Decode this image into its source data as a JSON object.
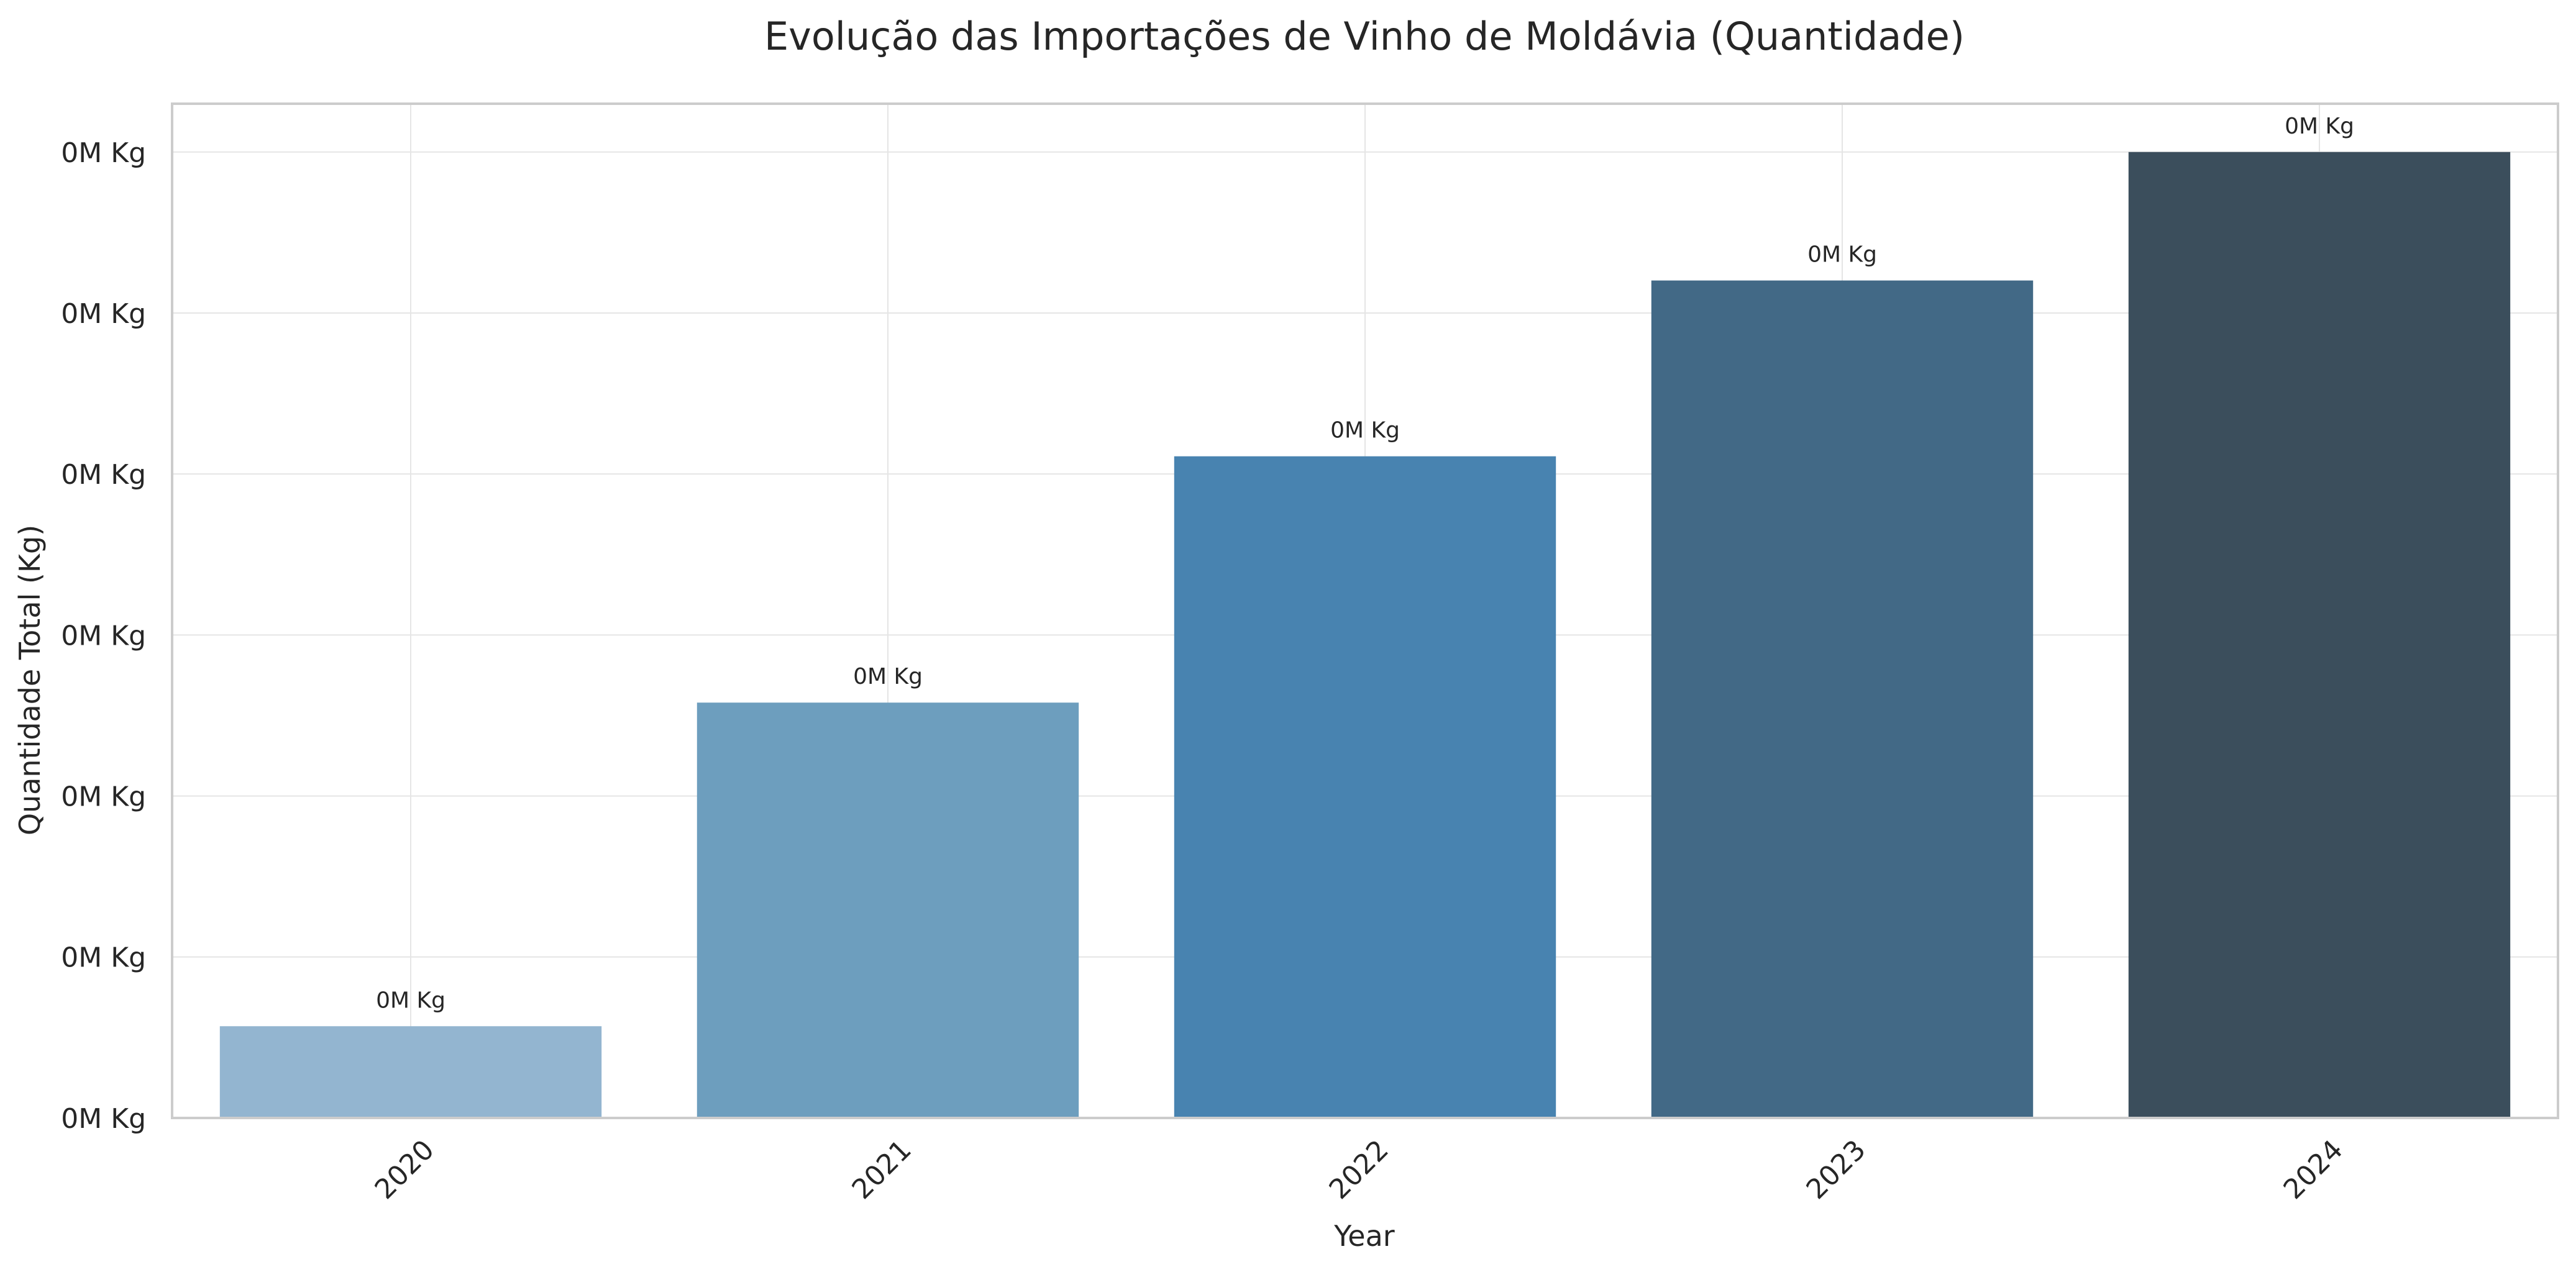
{
  "chart_data": {
    "type": "bar",
    "title": "Evolução das Importações de Vinho de Moldávia (Quantidade)",
    "xlabel": "Year",
    "ylabel": "Quantidade Total (Kg)",
    "categories": [
      "2020",
      "2021",
      "2022",
      "2023",
      "2024"
    ],
    "values": [
      0.095,
      0.43,
      0.685,
      0.867,
      1.0
    ],
    "value_labels": [
      "0M Kg",
      "0M Kg",
      "0M Kg",
      "0M Kg",
      "0M Kg"
    ],
    "ylim": [
      0,
      1.05
    ],
    "yticks": [
      0,
      0.1667,
      0.3333,
      0.5,
      0.6667,
      0.8333,
      1.0
    ],
    "ytick_labels": [
      "0M Kg",
      "0M Kg",
      "0M Kg",
      "0M Kg",
      "0M Kg",
      "0M Kg",
      "0M Kg"
    ],
    "bar_colors": [
      "#93b5d0",
      "#6d9ebe",
      "#4883b0",
      "#426986",
      "#3b4e5c"
    ],
    "grid": true,
    "x_tick_rotation": 45
  }
}
